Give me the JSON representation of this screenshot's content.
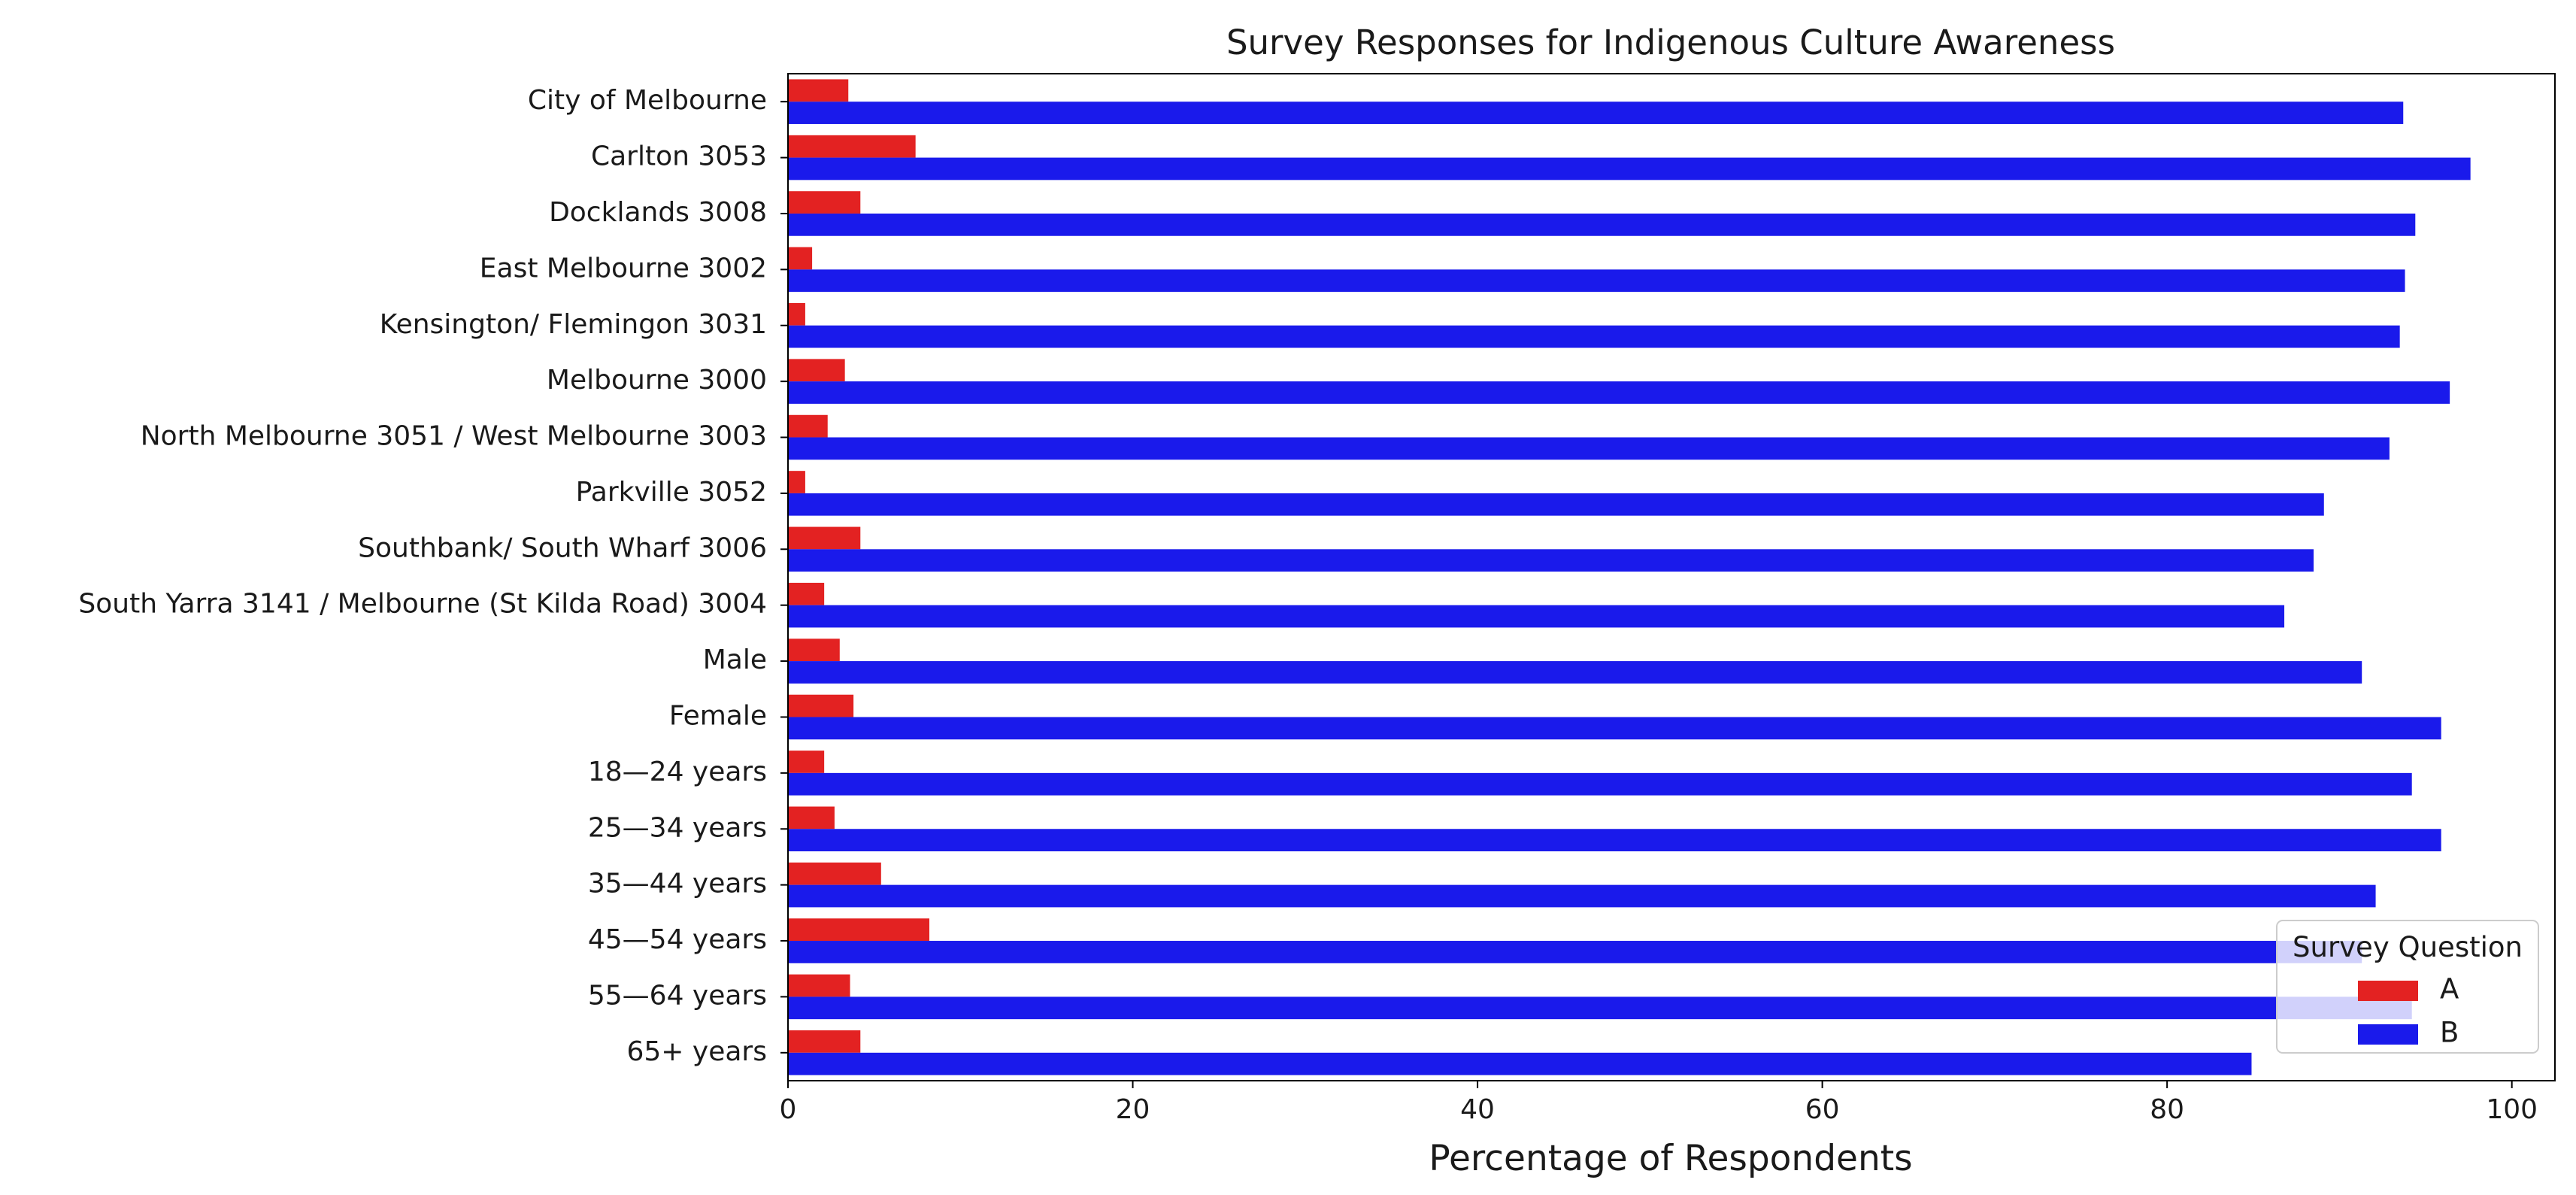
{
  "chart_data": {
    "type": "bar",
    "orientation": "horizontal",
    "title": "Survey Responses for Indigenous Culture Awareness",
    "xlabel": "Percentage of Respondents",
    "ylabel": "",
    "xlim": [
      0,
      102.5
    ],
    "xticks": [
      0,
      20,
      40,
      60,
      80,
      100
    ],
    "grid": false,
    "categories": [
      "City of Melbourne",
      "Carlton 3053",
      "Docklands 3008",
      "East Melbourne 3002",
      "Kensington/ Flemingon 3031",
      "Melbourne 3000",
      "North Melbourne 3051 / West Melbourne 3003",
      "Parkville 3052",
      "Southbank/ South Wharf 3006",
      "South Yarra 3141 / Melbourne (St Kilda Road) 3004",
      "Male",
      "Female",
      "18—24 years",
      "25—34 years",
      "35—44 years",
      "45—54 years",
      "55—64 years",
      "65+ years"
    ],
    "series": [
      {
        "name": "A",
        "color": "#e32222",
        "values": [
          3.5,
          7.4,
          4.2,
          1.4,
          1.0,
          3.3,
          2.3,
          1.0,
          4.2,
          2.1,
          3.0,
          3.8,
          2.1,
          2.7,
          5.4,
          8.2,
          3.6,
          4.2
        ]
      },
      {
        "name": "B",
        "color": "#1a1aeb",
        "values": [
          93.7,
          97.6,
          94.4,
          93.8,
          93.5,
          96.4,
          92.9,
          89.1,
          88.5,
          86.8,
          91.3,
          95.9,
          94.2,
          95.9,
          92.1,
          91.3,
          94.2,
          84.9
        ]
      }
    ],
    "legend": {
      "title": "Survey Question",
      "position": "lower-right"
    }
  }
}
